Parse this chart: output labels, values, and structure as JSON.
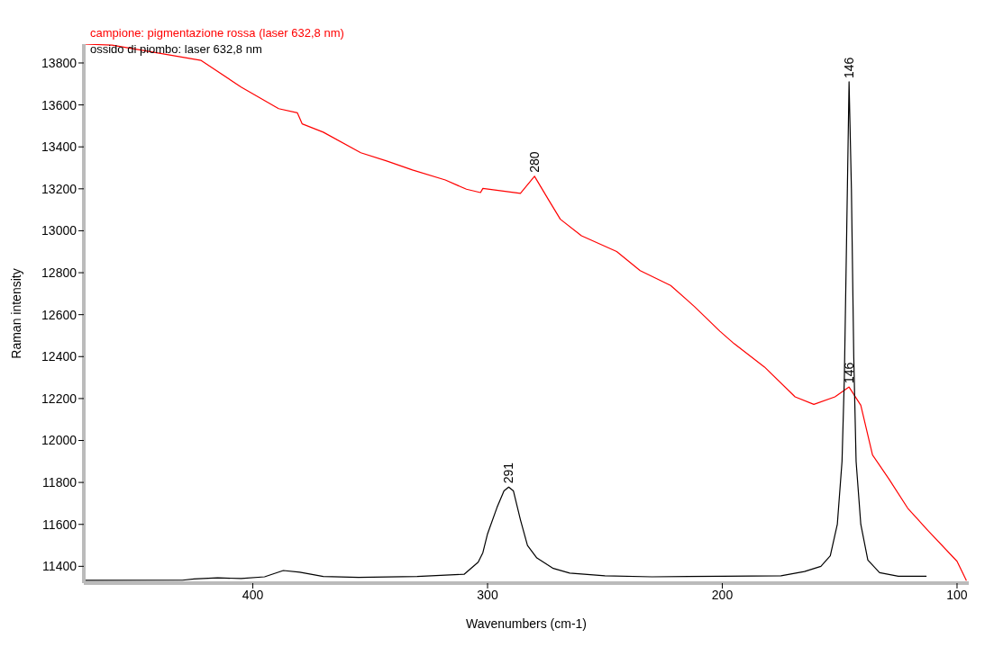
{
  "chart_data": {
    "type": "line",
    "xlabel": "Wavenumbers (cm-1)",
    "ylabel": "Raman intensity",
    "xlim": [
      472,
      95
    ],
    "xticks": [
      400,
      300,
      200,
      100
    ],
    "ylim": [
      11320,
      13890
    ],
    "yticks": [
      11400,
      11600,
      11800,
      12000,
      12200,
      12400,
      12600,
      12800,
      13000,
      13200,
      13400,
      13600,
      13800
    ],
    "grid": false,
    "legend": "top left",
    "marker": "none",
    "line_style": "solid",
    "series": [
      {
        "name": "campione: pigmentazione rossa (laser 632,8 nm)",
        "color": "#ff0000",
        "x": [
          472,
          460,
          422,
          405,
          389,
          381,
          379,
          370,
          354,
          343,
          332,
          318,
          309,
          303,
          302,
          286,
          280,
          274,
          269,
          260,
          245,
          235,
          222,
          212,
          201,
          195,
          182,
          169,
          161,
          152,
          146,
          141,
          136,
          129,
          121,
          113,
          100,
          96
        ],
        "values": [
          13890,
          13885,
          13812,
          13685,
          13582,
          13562,
          13510,
          13470,
          13372,
          13333,
          13290,
          13242,
          13198,
          13182,
          13202,
          13178,
          13260,
          13147,
          13055,
          12976,
          12901,
          12810,
          12739,
          12640,
          12521,
          12462,
          12350,
          12208,
          12172,
          12208,
          12255,
          12168,
          11931,
          11816,
          11677,
          11578,
          11424,
          11332
        ]
      },
      {
        "name": "ossido di piombo: laser 632,8 nm",
        "color": "#000000",
        "x": [
          472,
          430,
          425,
          415,
          405,
          395,
          387,
          380,
          370,
          355,
          330,
          310,
          304,
          302,
          300,
          296,
          293,
          291,
          289,
          286,
          283,
          279,
          272,
          265,
          250,
          230,
          200,
          175,
          165,
          158,
          154,
          151,
          149,
          148,
          147,
          146,
          145,
          144,
          143,
          141,
          138,
          133,
          125,
          113
        ],
        "values": [
          11333,
          11334,
          11340,
          11345,
          11342,
          11350,
          11380,
          11372,
          11352,
          11347,
          11352,
          11362,
          11420,
          11465,
          11555,
          11680,
          11760,
          11778,
          11760,
          11622,
          11500,
          11440,
          11390,
          11368,
          11355,
          11350,
          11353,
          11355,
          11375,
          11400,
          11450,
          11600,
          11900,
          12300,
          13000,
          13710,
          13200,
          12400,
          11900,
          11600,
          11430,
          11370,
          11353,
          11353
        ]
      }
    ],
    "annotations": [
      {
        "text": "280",
        "x": 280,
        "y": 13260
      },
      {
        "text": "146",
        "x": 146,
        "y": 13710
      },
      {
        "text": "146",
        "x": 146,
        "y": 12255
      },
      {
        "text": "291",
        "x": 291,
        "y": 11778
      }
    ]
  }
}
